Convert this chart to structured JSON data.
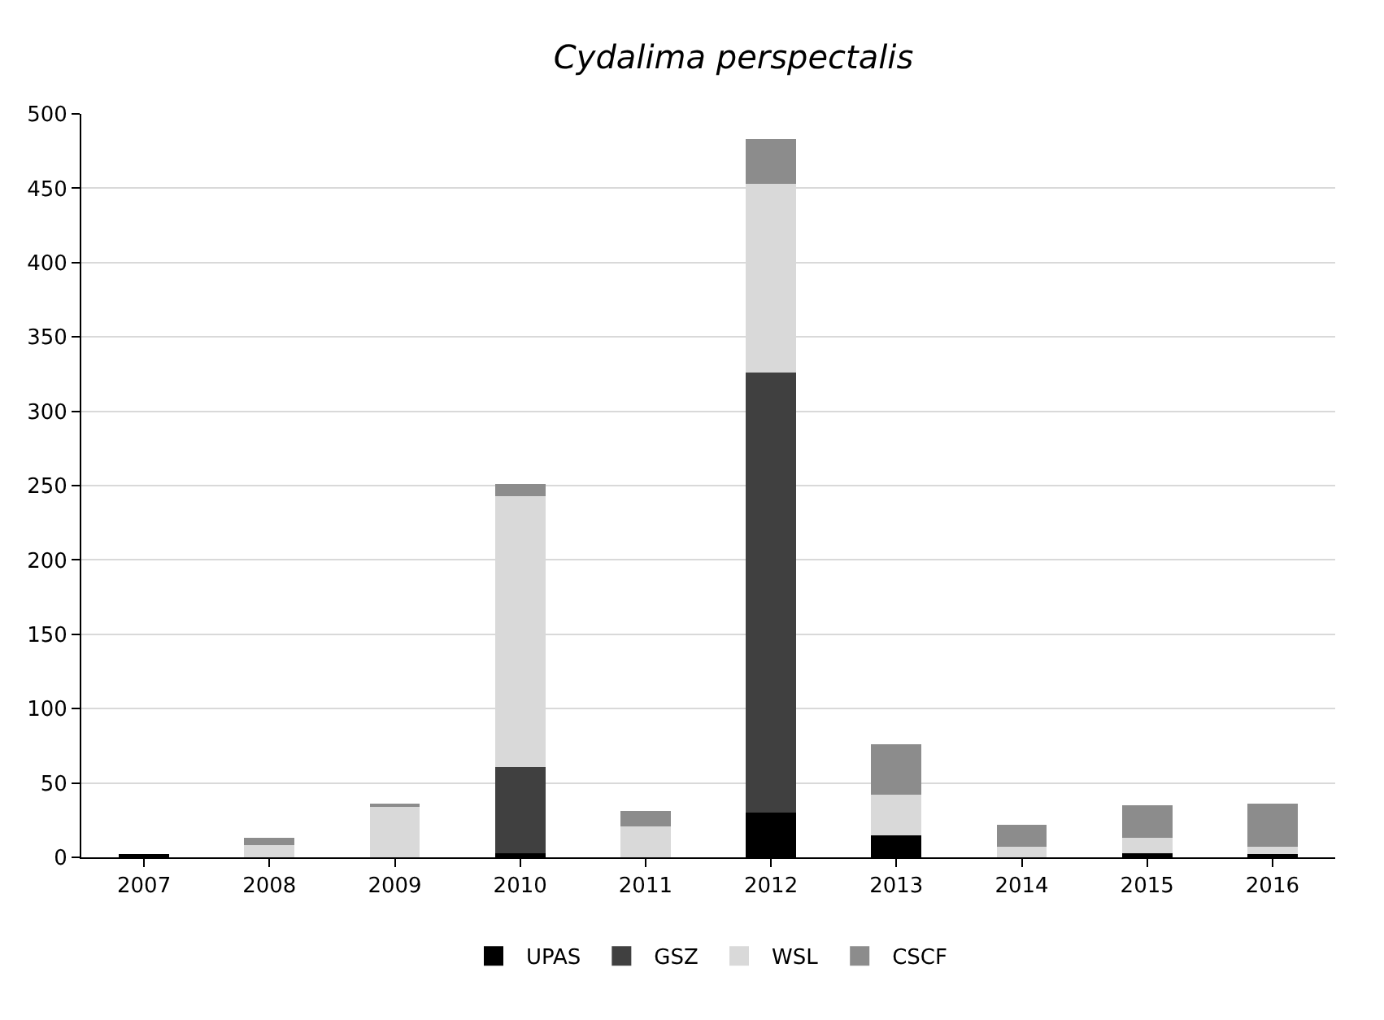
{
  "chart_data": {
    "type": "bar",
    "title": "Cydalima perspectalis",
    "stacked": true,
    "categories": [
      "2007",
      "2008",
      "2009",
      "2010",
      "2011",
      "2012",
      "2013",
      "2014",
      "2015",
      "2016"
    ],
    "series": [
      {
        "name": "UPAS",
        "color": "#000000",
        "values": [
          2,
          null,
          null,
          3,
          null,
          30,
          15,
          null,
          3,
          2
        ]
      },
      {
        "name": "GSZ",
        "color": "#404040",
        "values": [
          null,
          null,
          null,
          58,
          null,
          296,
          null,
          null,
          null,
          null
        ]
      },
      {
        "name": "WSL",
        "color": "#d9d9d9",
        "values": [
          null,
          8,
          35,
          182,
          21,
          127,
          27,
          7,
          10,
          5
        ]
      },
      {
        "name": "CSCF",
        "color": "#8c8c8c",
        "values": [
          null,
          5,
          1,
          8,
          10,
          30,
          34,
          15,
          22,
          29
        ]
      }
    ],
    "ylim": [
      0,
      500
    ],
    "yticks": [
      0,
      50,
      100,
      150,
      200,
      250,
      300,
      350,
      400,
      450,
      500
    ],
    "grid": "y",
    "legend": "bottom"
  }
}
